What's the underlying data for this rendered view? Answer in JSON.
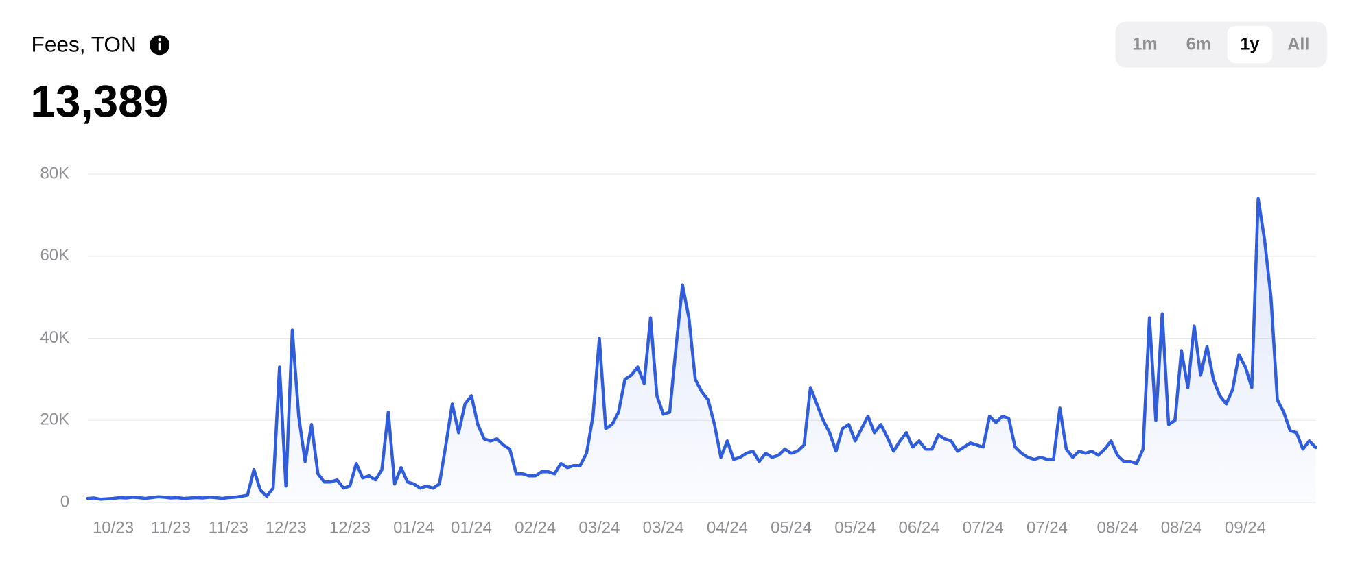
{
  "header": {
    "title": "Fees, TON",
    "value": "13,389",
    "ranges": [
      {
        "label": "1m",
        "selected": false
      },
      {
        "label": "6m",
        "selected": false
      },
      {
        "label": "1y",
        "selected": true
      },
      {
        "label": "All",
        "selected": false
      }
    ]
  },
  "chart_data": {
    "type": "area",
    "categories": [
      null,
      null,
      null,
      null,
      "10/23",
      null,
      null,
      null,
      null,
      null,
      null,
      null,
      null,
      "11/23",
      null,
      null,
      null,
      null,
      null,
      null,
      null,
      null,
      "11/23",
      null,
      null,
      null,
      null,
      null,
      null,
      null,
      null,
      "12/23",
      null,
      null,
      null,
      null,
      null,
      null,
      null,
      null,
      null,
      "12/23",
      null,
      null,
      null,
      null,
      null,
      null,
      null,
      null,
      null,
      "01/24",
      null,
      null,
      null,
      null,
      null,
      null,
      null,
      null,
      "01/24",
      null,
      null,
      null,
      null,
      null,
      null,
      null,
      null,
      null,
      "02/24",
      null,
      null,
      null,
      null,
      null,
      null,
      null,
      null,
      null,
      "03/24",
      null,
      null,
      null,
      null,
      null,
      null,
      null,
      null,
      null,
      "03/24",
      null,
      null,
      null,
      null,
      null,
      null,
      null,
      null,
      null,
      "04/24",
      null,
      null,
      null,
      null,
      null,
      null,
      null,
      null,
      null,
      "05/24",
      null,
      null,
      null,
      null,
      null,
      null,
      null,
      null,
      null,
      "05/24",
      null,
      null,
      null,
      null,
      null,
      null,
      null,
      null,
      null,
      "06/24",
      null,
      null,
      null,
      null,
      null,
      null,
      null,
      null,
      null,
      "07/24",
      null,
      null,
      null,
      null,
      null,
      null,
      null,
      null,
      null,
      "07/24",
      null,
      null,
      null,
      null,
      null,
      null,
      null,
      null,
      null,
      null,
      "08/24",
      null,
      null,
      null,
      null,
      null,
      null,
      null,
      null,
      null,
      "08/24",
      null,
      null,
      null,
      null,
      null,
      null,
      null,
      null,
      null,
      "09/24",
      null,
      null,
      null,
      null,
      null,
      null,
      null,
      null,
      null,
      null,
      null
    ],
    "series": [
      {
        "color": "#2f5ddc",
        "values": [
          1000,
          1100,
          800,
          900,
          1000,
          1200,
          1100,
          1300,
          1200,
          1000,
          1200,
          1400,
          1300,
          1100,
          1200,
          1000,
          1100,
          1200,
          1100,
          1300,
          1200,
          1000,
          1200,
          1300,
          1500,
          1800,
          8000,
          3000,
          1500,
          3500,
          33000,
          4000,
          42000,
          21000,
          10000,
          19000,
          7000,
          5000,
          5000,
          5500,
          3500,
          4000,
          9500,
          6000,
          6500,
          5500,
          8000,
          22000,
          4500,
          8500,
          5000,
          4500,
          3500,
          4000,
          3500,
          4500,
          14000,
          24000,
          17000,
          24000,
          26000,
          19000,
          15500,
          15000,
          15500,
          14000,
          13000,
          7000,
          7000,
          6500,
          6500,
          7500,
          7500,
          7000,
          9500,
          8500,
          9000,
          9000,
          12000,
          21000,
          40000,
          18000,
          19000,
          22000,
          30000,
          31000,
          33000,
          29000,
          45000,
          26000,
          21500,
          22000,
          38000,
          53000,
          45000,
          30000,
          27000,
          25000,
          19000,
          11000,
          15000,
          10500,
          11000,
          12000,
          12500,
          10000,
          12000,
          11000,
          11500,
          13000,
          12000,
          12500,
          14000,
          28000,
          24000,
          20000,
          17000,
          12500,
          18000,
          19000,
          15000,
          18000,
          21000,
          17000,
          19000,
          16000,
          12500,
          15000,
          17000,
          13500,
          15000,
          13000,
          13000,
          16500,
          15500,
          15000,
          12500,
          13500,
          14500,
          14000,
          13500,
          21000,
          19500,
          21000,
          20500,
          13500,
          12000,
          11000,
          10500,
          11000,
          10500,
          10500,
          23000,
          13000,
          11000,
          12500,
          12000,
          12500,
          11500,
          13000,
          15000,
          11500,
          10000,
          10000,
          9500,
          13000,
          45000,
          20000,
          46000,
          19000,
          20000,
          37000,
          28000,
          43000,
          31000,
          38000,
          30000,
          26000,
          24000,
          27500,
          36000,
          33000,
          28000,
          74000,
          64000,
          50000,
          25000,
          22000,
          17500,
          17000,
          13000,
          15000,
          13400
        ]
      }
    ],
    "ylim": [
      0,
      80000
    ],
    "yticks": [
      0,
      {
        "value": 20000,
        "label": "20K"
      },
      {
        "value": 40000,
        "label": "40K"
      },
      {
        "value": 60000,
        "label": "60K"
      },
      {
        "value": 80000,
        "label": "80K"
      }
    ],
    "grid": true
  }
}
